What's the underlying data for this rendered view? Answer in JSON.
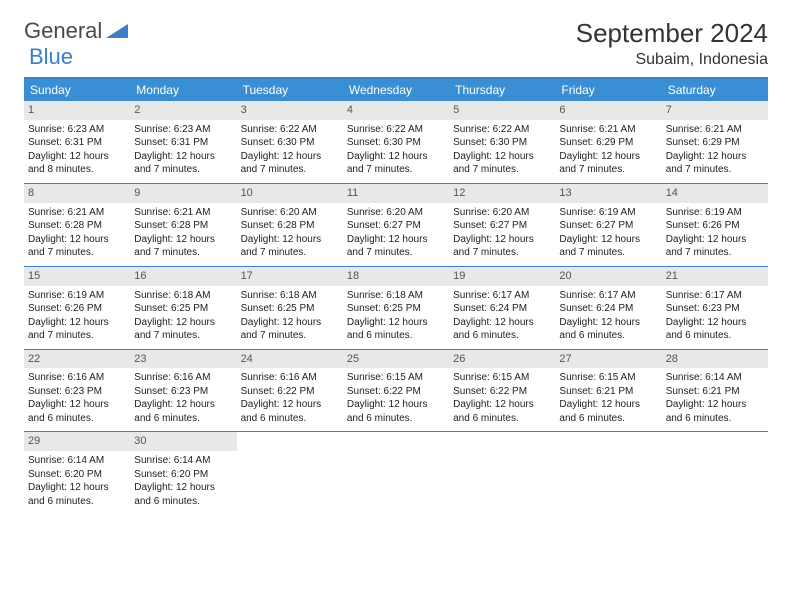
{
  "logo": {
    "text1": "General",
    "text2": "Blue"
  },
  "title": "September 2024",
  "location": "Subaim, Indonesia",
  "colors": {
    "header_bg": "#3a8fd4",
    "border": "#3a7fc4",
    "daynum_bg": "#e8e8e8",
    "text": "#222222",
    "logo_gray": "#4a4a4a",
    "logo_blue": "#3a7fc4"
  },
  "day_headers": [
    "Sunday",
    "Monday",
    "Tuesday",
    "Wednesday",
    "Thursday",
    "Friday",
    "Saturday"
  ],
  "weeks": [
    [
      {
        "n": "1",
        "sr": "6:23 AM",
        "ss": "6:31 PM",
        "dl": "12 hours and 8 minutes."
      },
      {
        "n": "2",
        "sr": "6:23 AM",
        "ss": "6:31 PM",
        "dl": "12 hours and 7 minutes."
      },
      {
        "n": "3",
        "sr": "6:22 AM",
        "ss": "6:30 PM",
        "dl": "12 hours and 7 minutes."
      },
      {
        "n": "4",
        "sr": "6:22 AM",
        "ss": "6:30 PM",
        "dl": "12 hours and 7 minutes."
      },
      {
        "n": "5",
        "sr": "6:22 AM",
        "ss": "6:30 PM",
        "dl": "12 hours and 7 minutes."
      },
      {
        "n": "6",
        "sr": "6:21 AM",
        "ss": "6:29 PM",
        "dl": "12 hours and 7 minutes."
      },
      {
        "n": "7",
        "sr": "6:21 AM",
        "ss": "6:29 PM",
        "dl": "12 hours and 7 minutes."
      }
    ],
    [
      {
        "n": "8",
        "sr": "6:21 AM",
        "ss": "6:28 PM",
        "dl": "12 hours and 7 minutes."
      },
      {
        "n": "9",
        "sr": "6:21 AM",
        "ss": "6:28 PM",
        "dl": "12 hours and 7 minutes."
      },
      {
        "n": "10",
        "sr": "6:20 AM",
        "ss": "6:28 PM",
        "dl": "12 hours and 7 minutes."
      },
      {
        "n": "11",
        "sr": "6:20 AM",
        "ss": "6:27 PM",
        "dl": "12 hours and 7 minutes."
      },
      {
        "n": "12",
        "sr": "6:20 AM",
        "ss": "6:27 PM",
        "dl": "12 hours and 7 minutes."
      },
      {
        "n": "13",
        "sr": "6:19 AM",
        "ss": "6:27 PM",
        "dl": "12 hours and 7 minutes."
      },
      {
        "n": "14",
        "sr": "6:19 AM",
        "ss": "6:26 PM",
        "dl": "12 hours and 7 minutes."
      }
    ],
    [
      {
        "n": "15",
        "sr": "6:19 AM",
        "ss": "6:26 PM",
        "dl": "12 hours and 7 minutes."
      },
      {
        "n": "16",
        "sr": "6:18 AM",
        "ss": "6:25 PM",
        "dl": "12 hours and 7 minutes."
      },
      {
        "n": "17",
        "sr": "6:18 AM",
        "ss": "6:25 PM",
        "dl": "12 hours and 7 minutes."
      },
      {
        "n": "18",
        "sr": "6:18 AM",
        "ss": "6:25 PM",
        "dl": "12 hours and 6 minutes."
      },
      {
        "n": "19",
        "sr": "6:17 AM",
        "ss": "6:24 PM",
        "dl": "12 hours and 6 minutes."
      },
      {
        "n": "20",
        "sr": "6:17 AM",
        "ss": "6:24 PM",
        "dl": "12 hours and 6 minutes."
      },
      {
        "n": "21",
        "sr": "6:17 AM",
        "ss": "6:23 PM",
        "dl": "12 hours and 6 minutes."
      }
    ],
    [
      {
        "n": "22",
        "sr": "6:16 AM",
        "ss": "6:23 PM",
        "dl": "12 hours and 6 minutes."
      },
      {
        "n": "23",
        "sr": "6:16 AM",
        "ss": "6:23 PM",
        "dl": "12 hours and 6 minutes."
      },
      {
        "n": "24",
        "sr": "6:16 AM",
        "ss": "6:22 PM",
        "dl": "12 hours and 6 minutes."
      },
      {
        "n": "25",
        "sr": "6:15 AM",
        "ss": "6:22 PM",
        "dl": "12 hours and 6 minutes."
      },
      {
        "n": "26",
        "sr": "6:15 AM",
        "ss": "6:22 PM",
        "dl": "12 hours and 6 minutes."
      },
      {
        "n": "27",
        "sr": "6:15 AM",
        "ss": "6:21 PM",
        "dl": "12 hours and 6 minutes."
      },
      {
        "n": "28",
        "sr": "6:14 AM",
        "ss": "6:21 PM",
        "dl": "12 hours and 6 minutes."
      }
    ],
    [
      {
        "n": "29",
        "sr": "6:14 AM",
        "ss": "6:20 PM",
        "dl": "12 hours and 6 minutes."
      },
      {
        "n": "30",
        "sr": "6:14 AM",
        "ss": "6:20 PM",
        "dl": "12 hours and 6 minutes."
      },
      null,
      null,
      null,
      null,
      null
    ]
  ],
  "labels": {
    "sunrise": "Sunrise:",
    "sunset": "Sunset:",
    "daylight": "Daylight:"
  }
}
